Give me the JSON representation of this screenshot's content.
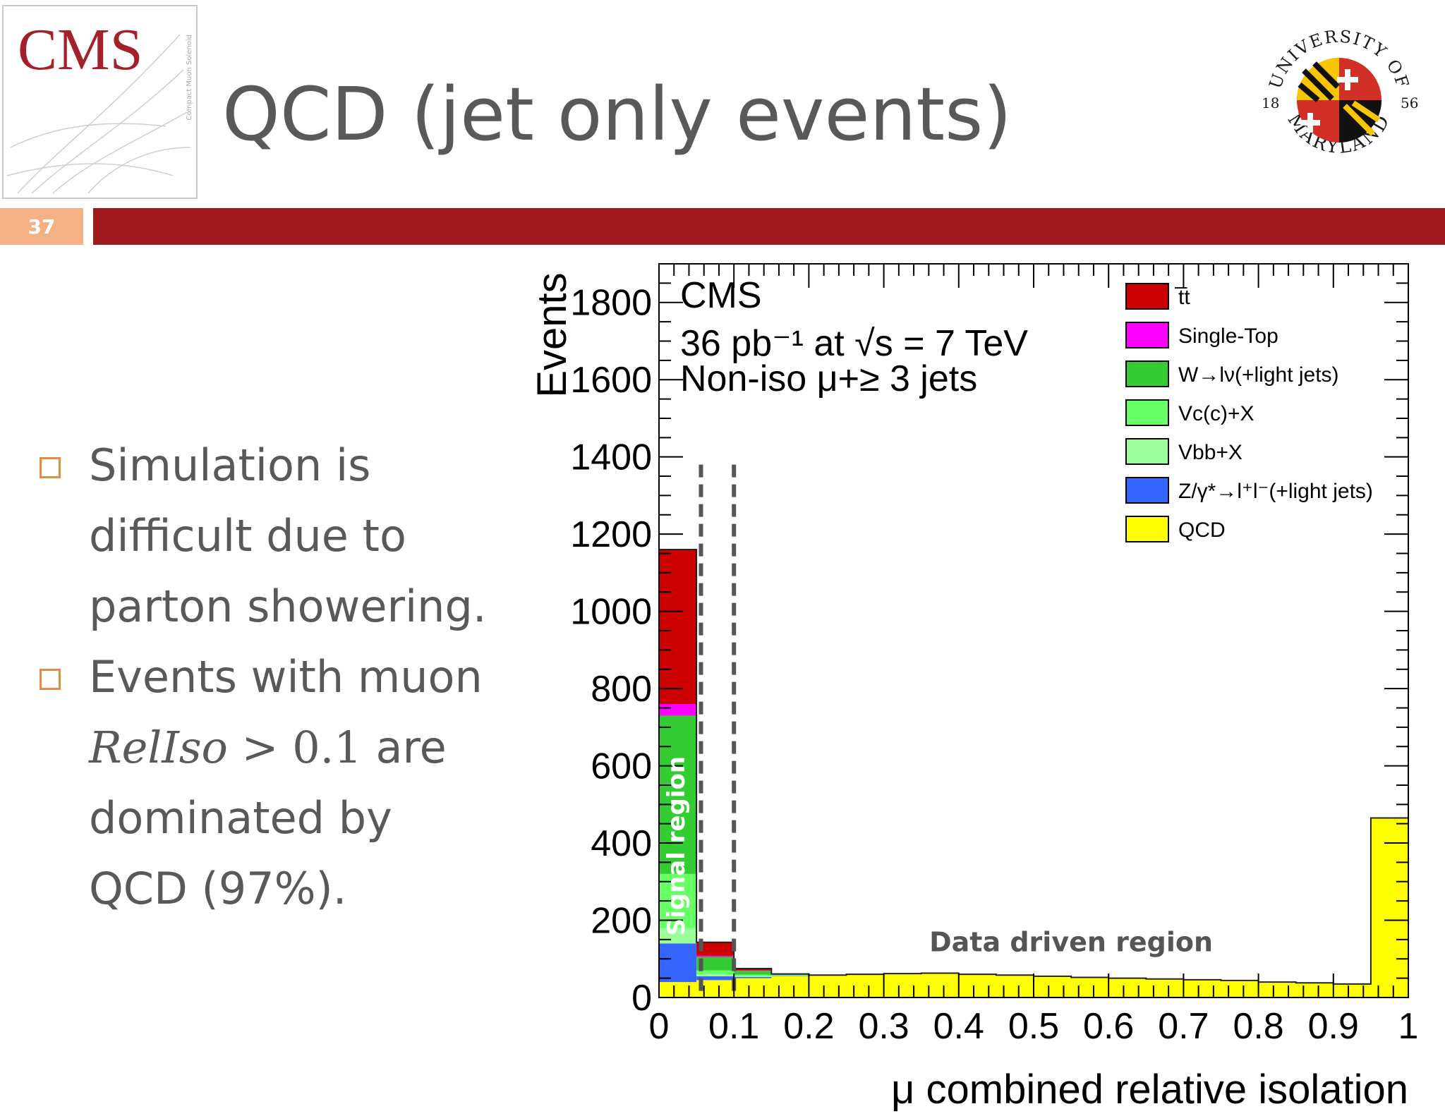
{
  "header": {
    "logo_text": "CMS",
    "logo_subtext": "Compact Muon Solenoid",
    "title": "QCD (jet only events)",
    "slide_number": "37",
    "seal": {
      "top_text": "UNIVERSITY OF",
      "bottom_text": "MARYLAND",
      "left_year": "18",
      "right_year": "56"
    }
  },
  "bullets": [
    {
      "lines": [
        "Simulation is",
        "difficult due to",
        "parton showering."
      ]
    },
    {
      "line1": "Events with muon",
      "math_var": "RelIso",
      "math_op": " > 0.1",
      "math_after": " are",
      "line3": "dominated by",
      "line4": "QCD (97%)."
    }
  ],
  "colors": {
    "accent_bar": "#a0191f",
    "slide_number_bg": "#f4b183",
    "bullet_marker": "#e48b4a",
    "text": "#595959",
    "cms_red": "#a4202a"
  },
  "chart_data": {
    "type": "bar",
    "stacked": true,
    "cms_label": "CMS",
    "lumi_label": "36 pb⁻¹ at √s = 7 TeV",
    "selection_label": "Non-iso μ+≥ 3 jets",
    "xlabel": "μ combined relative isolation",
    "ylabel": "Events",
    "xlim": [
      0,
      1
    ],
    "ylim": [
      0,
      1900
    ],
    "x_ticks": [
      "0",
      "0.1",
      "0.2",
      "0.3",
      "0.4",
      "0.5",
      "0.6",
      "0.7",
      "0.8",
      "0.9",
      "1"
    ],
    "y_ticks": [
      "0",
      "200",
      "400",
      "600",
      "800",
      "1000",
      "1200",
      "1400",
      "1600",
      "1800"
    ],
    "bin_edges": [
      0,
      0.05,
      0.1,
      0.15,
      0.2,
      0.25,
      0.3,
      0.35,
      0.4,
      0.45,
      0.5,
      0.55,
      0.6,
      0.65,
      0.7,
      0.75,
      0.8,
      0.85,
      0.9,
      0.95,
      1.0
    ],
    "series": [
      {
        "name": "QCD",
        "color": "#ffff00",
        "values": [
          40,
          45,
          50,
          55,
          58,
          60,
          62,
          63,
          60,
          58,
          55,
          52,
          50,
          48,
          46,
          44,
          40,
          38,
          35,
          465
        ]
      },
      {
        "name": "Z/γ*→l⁺l⁻(+light jets)",
        "color": "#3366ff",
        "values": [
          100,
          10,
          3,
          1,
          0,
          0,
          0,
          0,
          0,
          0,
          0,
          0,
          0,
          0,
          0,
          0,
          0,
          0,
          0,
          0
        ]
      },
      {
        "name": "Vbb+X",
        "color": "#99ff99",
        "values": [
          40,
          5,
          2,
          1,
          0,
          0,
          0,
          0,
          0,
          0,
          0,
          0,
          0,
          0,
          0,
          0,
          0,
          0,
          0,
          0
        ]
      },
      {
        "name": "Vc(c)+X",
        "color": "#66ff66",
        "values": [
          140,
          10,
          4,
          1,
          0,
          0,
          0,
          0,
          0,
          0,
          0,
          0,
          0,
          0,
          0,
          0,
          0,
          0,
          0,
          0
        ]
      },
      {
        "name": "W→lν(+light jets)",
        "color": "#33cc33",
        "values": [
          410,
          35,
          10,
          2,
          0,
          0,
          0,
          0,
          0,
          0,
          0,
          0,
          0,
          0,
          0,
          0,
          0,
          0,
          0,
          0
        ]
      },
      {
        "name": "Single-Top",
        "color": "#ff00ff",
        "values": [
          30,
          3,
          1,
          0,
          0,
          0,
          0,
          0,
          0,
          0,
          0,
          0,
          0,
          0,
          0,
          0,
          0,
          0,
          0,
          0
        ]
      },
      {
        "name": "t̅t",
        "color": "#cc0000",
        "values": [
          400,
          35,
          5,
          1,
          0,
          0,
          0,
          0,
          0,
          0,
          0,
          0,
          0,
          0,
          0,
          0,
          0,
          0,
          0,
          0
        ]
      }
    ],
    "legend_order": [
      "t̅t",
      "Single-Top",
      "W→lν(+light jets)",
      "Vc(c)+X",
      "Vbb+X",
      "Z/γ*→l⁺l⁻(+light jets)",
      "QCD"
    ],
    "legend_position": "top-right",
    "cut_lines_x": [
      0.056,
      0.1
    ],
    "annotations": {
      "signal_region": "Signal region",
      "data_driven_region": "Data driven region"
    }
  }
}
